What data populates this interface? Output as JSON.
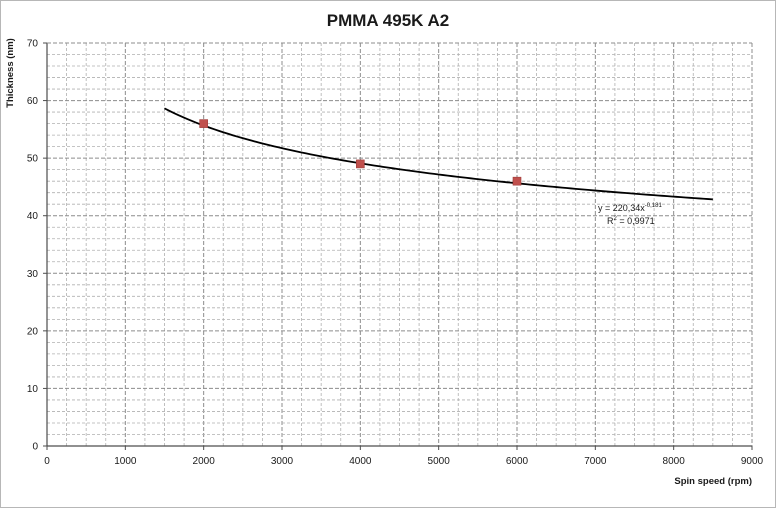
{
  "chart_data": {
    "type": "scatter",
    "title": "PMMA 495K A2",
    "xlabel": "Spin speed (rpm)",
    "ylabel": "Thickness (nm)",
    "xlim": [
      0,
      9000
    ],
    "ylim": [
      0,
      70
    ],
    "x_ticks": [
      "0",
      "1000",
      "2000",
      "3000",
      "4000",
      "5000",
      "6000",
      "7000",
      "8000",
      "9000"
    ],
    "y_ticks": [
      "0",
      "10",
      "20",
      "30",
      "40",
      "50",
      "60",
      "70"
    ],
    "grid": true,
    "series": [
      {
        "points": [
          {
            "x": 2000,
            "y": 56
          },
          {
            "x": 4000,
            "y": 49
          },
          {
            "x": 6000,
            "y": 46
          }
        ],
        "marker_color": "#c0504d"
      }
    ],
    "trendline": {
      "type": "power",
      "coefficient": 220.34,
      "exponent": -0.181,
      "x_range": [
        1500,
        8500
      ],
      "color": "#000000"
    },
    "equation_text": {
      "prefix": "y = 220,34x",
      "exponent": "-0,181",
      "r2_prefix": "R",
      "r2_sup": "2",
      "r2_value": " = 0,9971"
    }
  }
}
